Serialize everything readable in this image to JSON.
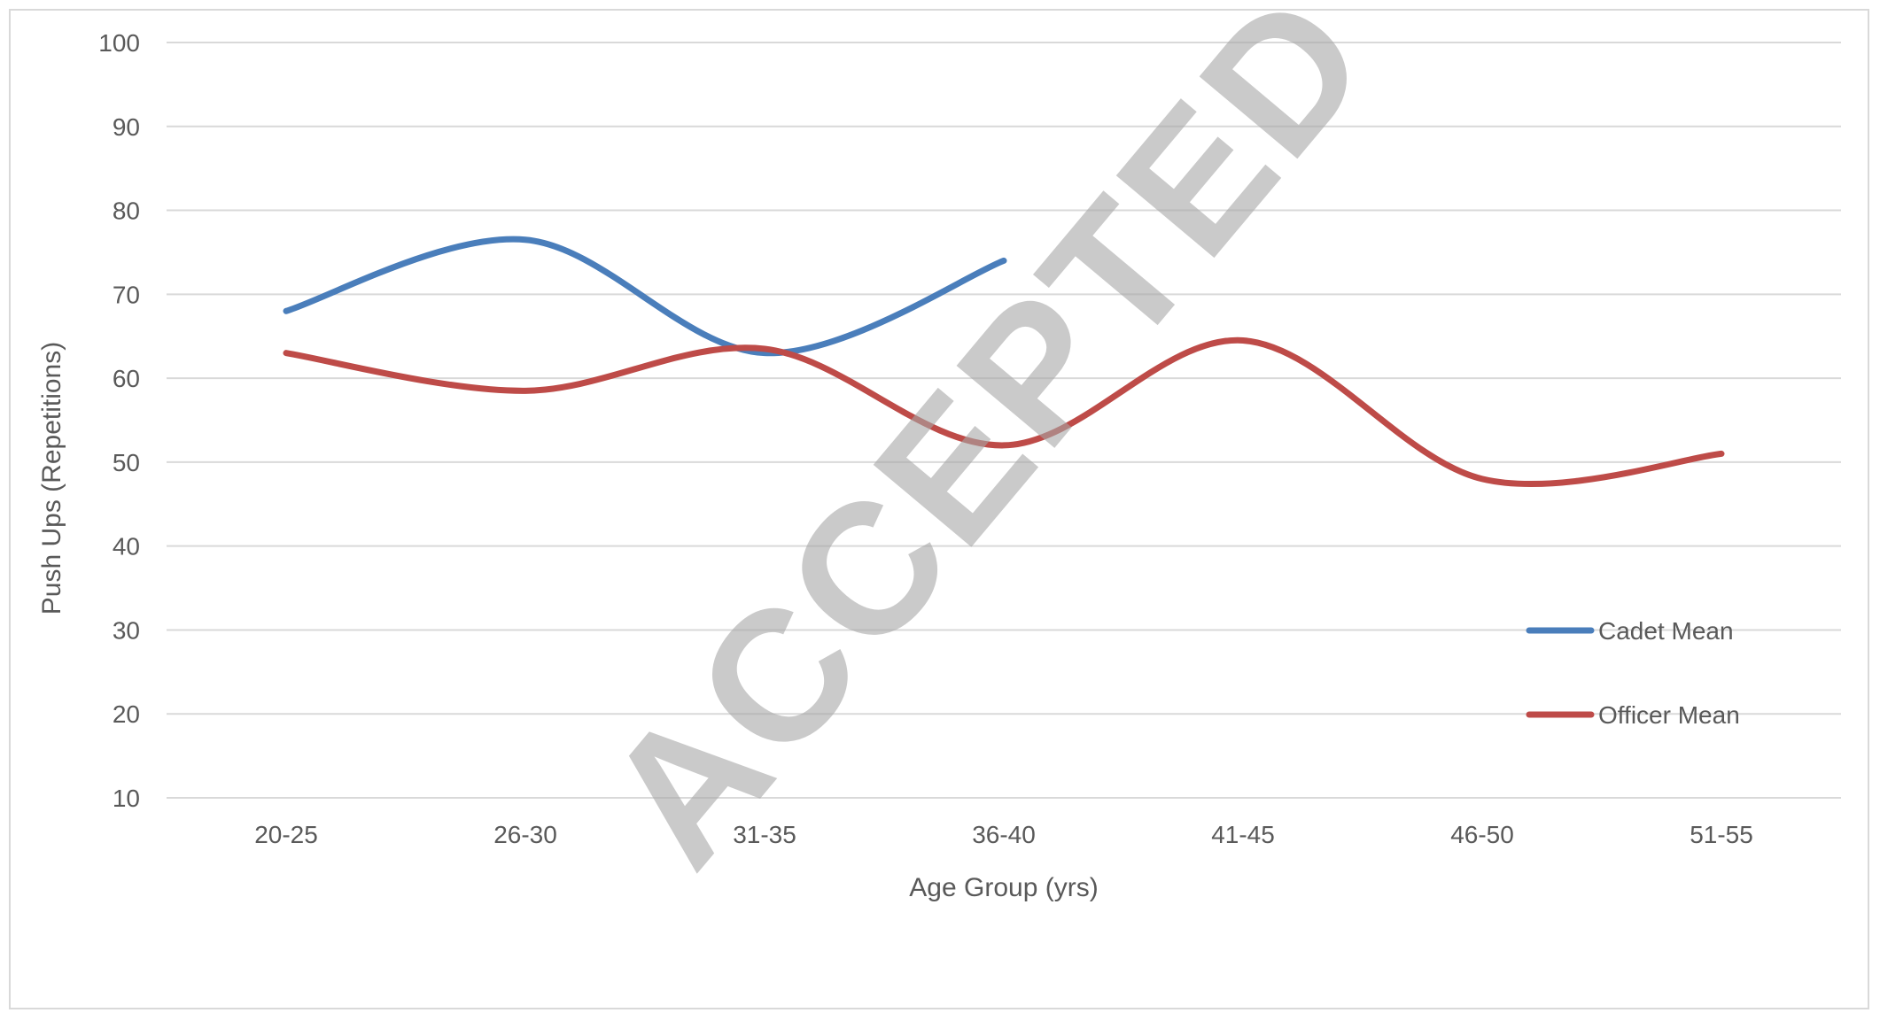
{
  "chart_data": {
    "type": "line",
    "title": "",
    "xlabel": "Age Group (yrs)",
    "ylabel": "Push Ups (Repetitions)",
    "categories": [
      "20-25",
      "26-30",
      "31-35",
      "36-40",
      "41-45",
      "46-50",
      "51-55"
    ],
    "ylim": [
      10,
      100
    ],
    "yticks": [
      10,
      20,
      30,
      40,
      50,
      60,
      70,
      80,
      90,
      100
    ],
    "grid": true,
    "smooth": true,
    "legend_position": "right",
    "series": [
      {
        "name": "Cadet Mean",
        "color": "#4a7ebb",
        "values": [
          68,
          76.5,
          63,
          74,
          null,
          null,
          null
        ]
      },
      {
        "name": "Officer Mean",
        "color": "#be4b48",
        "values": [
          63,
          58.5,
          63.5,
          52,
          64.5,
          48,
          51
        ]
      }
    ]
  },
  "watermark": {
    "text": "ACCEPTED",
    "color": "#a6a6a6"
  }
}
